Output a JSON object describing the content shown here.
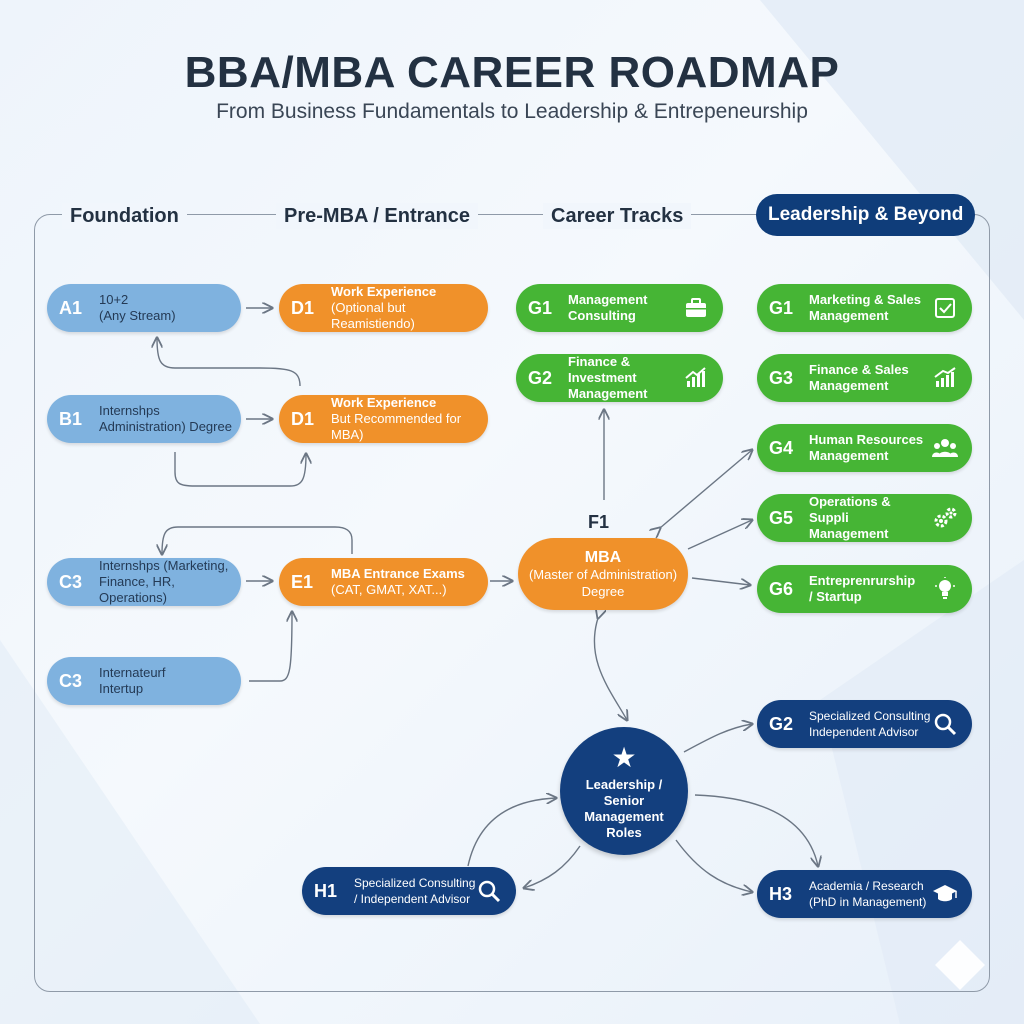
{
  "title": "BBA/MBA CAREER ROADMAP",
  "subtitle": "From Business Fundamentals to Leadership & Entrepeneurship",
  "columns": [
    "Foundation",
    "Pre-MBA / Entrance",
    "Career Tracks",
    "Leadership & Beyond"
  ],
  "foundation": [
    {
      "code": "A1",
      "l1": "10+2",
      "l2": "(Any Stream)"
    },
    {
      "code": "B1",
      "l1": "Internshps",
      "l2": "Administration) Degree"
    },
    {
      "code": "C3",
      "l1": "Internshps (Marketing,",
      "l2": "Finance, HR, Operations)"
    },
    {
      "code": "C3",
      "l1": "Internateurf",
      "l2": "Intertup"
    }
  ],
  "pre_mba": [
    {
      "code": "D1",
      "l1": "Work Experience",
      "l2": "(Optional but Reamistiendo)"
    },
    {
      "code": "D1",
      "l1": "Work Experience",
      "l2": "But Recommended for MBA)"
    },
    {
      "code": "E1",
      "l1": "MBA Entrance Exams",
      "l2": "(CAT, GMAT, XAT...)"
    }
  ],
  "career_tracks": [
    {
      "code": "G1",
      "l1": "Management",
      "l2": "Consulting",
      "icon": "briefcase-icon"
    },
    {
      "code": "G2",
      "l1": "Finance & Investment",
      "l2": "Management",
      "icon": "growth-chart-icon"
    }
  ],
  "mba": {
    "label": "F1",
    "l1": "MBA",
    "l2": "(Master of Administration)",
    "l3": "Degree"
  },
  "leadership_tracks": [
    {
      "code": "G1",
      "l1": "Marketing & Sales",
      "l2": "Management",
      "icon": "checklist-icon"
    },
    {
      "code": "G3",
      "l1": "Finance & Sales",
      "l2": "Management",
      "icon": "bar-chart-icon"
    },
    {
      "code": "G4",
      "l1": "Human Resources",
      "l2": "Management",
      "icon": "people-icon"
    },
    {
      "code": "G5",
      "l1": "Operations & Suppli",
      "l2": "Management",
      "icon": "gears-icon"
    },
    {
      "code": "G6",
      "l1": "Entreprenrurship",
      "l2": "/ Startup",
      "icon": "lightbulb-icon"
    }
  ],
  "leadership": {
    "l1": "Leadership /",
    "l2": "Senior",
    "l3": "Management",
    "l4": "Roles",
    "icon": "star-icon"
  },
  "beyond": [
    {
      "code": "G2",
      "l1": "Specialized Consulting",
      "l2": "Independent Advisor",
      "icon": "magnifier-icon"
    },
    {
      "code": "H1",
      "l1": "Specialized Consulting",
      "l2": "/ Independent Advisor",
      "icon": "magnifier-icon"
    },
    {
      "code": "H3",
      "l1": "Academia / Research",
      "l2": "(PhD in Management)",
      "icon": "graduation-cap-icon"
    }
  ],
  "colors": {
    "foundation": "#7fb2df",
    "pre_mba": "#f0912a",
    "career": "#46b535",
    "leadership": "#133f7e",
    "connector": "#6b7684"
  }
}
